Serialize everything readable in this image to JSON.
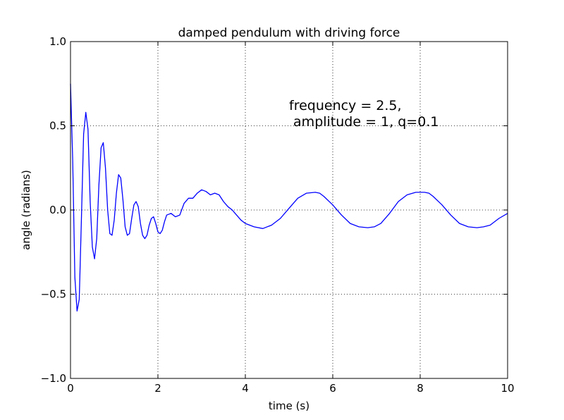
{
  "chart_data": {
    "type": "line",
    "title": "damped pendulum with driving force",
    "xlabel": "time (s)",
    "ylabel": "angle (radians)",
    "xlim": [
      0,
      10
    ],
    "ylim": [
      -1.0,
      1.0
    ],
    "xticks": [
      0,
      2,
      4,
      6,
      8,
      10
    ],
    "xtick_labels": [
      "0",
      "2",
      "4",
      "6",
      "8",
      "10"
    ],
    "yticks": [
      -1.0,
      -0.5,
      0.0,
      0.5,
      1.0
    ],
    "ytick_labels": [
      "−1.0",
      "−0.5",
      "0.0",
      "0.5",
      "1.0"
    ],
    "grid": true,
    "annotation": {
      "line1": "frequency = 2.5,",
      "line2": " amplitude = 1, q=0.1"
    },
    "series": [
      {
        "color": "#0000ff",
        "x": [
          0.0,
          0.05,
          0.1,
          0.15,
          0.2,
          0.25,
          0.3,
          0.35,
          0.4,
          0.45,
          0.5,
          0.55,
          0.6,
          0.65,
          0.7,
          0.75,
          0.8,
          0.85,
          0.9,
          0.95,
          1.0,
          1.05,
          1.1,
          1.15,
          1.2,
          1.25,
          1.3,
          1.35,
          1.4,
          1.45,
          1.5,
          1.55,
          1.6,
          1.65,
          1.7,
          1.75,
          1.8,
          1.85,
          1.9,
          1.95,
          2.0,
          2.05,
          2.1,
          2.15,
          2.2,
          2.3,
          2.4,
          2.5,
          2.6,
          2.7,
          2.8,
          2.9,
          3.0,
          3.1,
          3.2,
          3.3,
          3.4,
          3.5,
          3.6,
          3.7,
          3.8,
          3.9,
          4.0,
          4.2,
          4.4,
          4.6,
          4.8,
          5.0,
          5.2,
          5.4,
          5.6,
          5.7,
          5.8,
          6.0,
          6.2,
          6.4,
          6.6,
          6.8,
          6.95,
          7.1,
          7.3,
          7.5,
          7.7,
          7.9,
          8.1,
          8.2,
          8.3,
          8.5,
          8.7,
          8.9,
          9.1,
          9.3,
          9.45,
          9.6,
          9.8,
          10.0
        ],
        "y": [
          0.75,
          0.3,
          -0.4,
          -0.6,
          -0.53,
          -0.05,
          0.45,
          0.58,
          0.48,
          0.05,
          -0.22,
          -0.29,
          -0.17,
          0.15,
          0.37,
          0.4,
          0.25,
          0.0,
          -0.14,
          -0.15,
          -0.06,
          0.1,
          0.21,
          0.19,
          0.06,
          -0.1,
          -0.15,
          -0.14,
          -0.05,
          0.03,
          0.05,
          0.02,
          -0.08,
          -0.15,
          -0.17,
          -0.15,
          -0.09,
          -0.05,
          -0.04,
          -0.08,
          -0.13,
          -0.14,
          -0.12,
          -0.07,
          -0.03,
          -0.02,
          -0.04,
          -0.03,
          0.04,
          0.07,
          0.07,
          0.1,
          0.12,
          0.11,
          0.09,
          0.1,
          0.09,
          0.05,
          0.02,
          0.0,
          -0.03,
          -0.06,
          -0.08,
          -0.1,
          -0.11,
          -0.09,
          -0.05,
          0.01,
          0.07,
          0.1,
          0.105,
          0.1,
          0.08,
          0.03,
          -0.03,
          -0.08,
          -0.1,
          -0.105,
          -0.1,
          -0.08,
          -0.02,
          0.05,
          0.09,
          0.105,
          0.105,
          0.1,
          0.08,
          0.03,
          -0.03,
          -0.08,
          -0.1,
          -0.105,
          -0.1,
          -0.09,
          -0.05,
          -0.02
        ]
      }
    ]
  }
}
